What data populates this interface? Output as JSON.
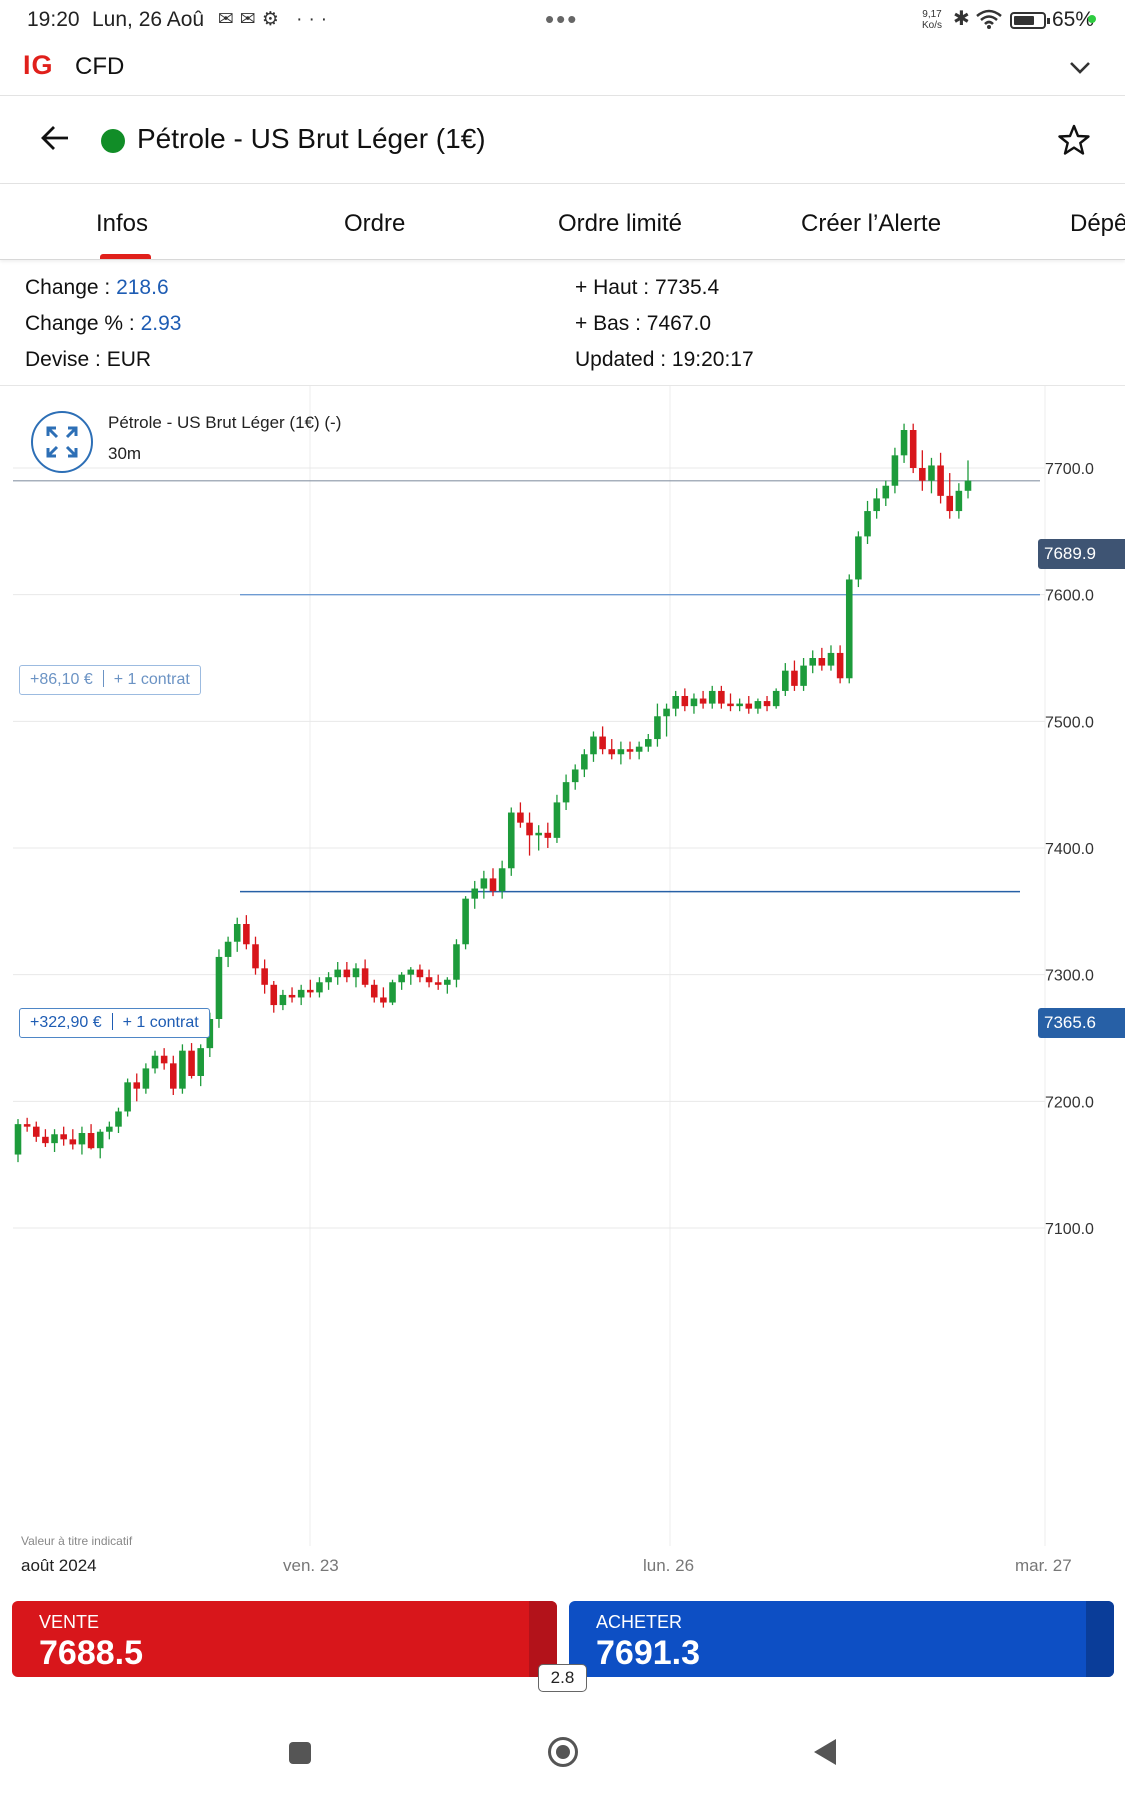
{
  "status_bar": {
    "time": "19:20",
    "date": "Lun, 26 Aoû",
    "notif_icons": "✉✉⚙ ···",
    "center_dots": "•••",
    "net_speed_value": "9,17",
    "net_speed_unit": "Ko/s",
    "battery": "65%"
  },
  "app_bar": {
    "logo": "IG",
    "account_type": "CFD"
  },
  "header": {
    "title": "Pétrole - US Brut Léger (1€)",
    "market_status_color": "#118d27"
  },
  "tabs": [
    "Infos",
    "Ordre",
    "Ordre limité",
    "Créer l’Alerte",
    "Dépê"
  ],
  "info": {
    "change_label": "Change : ",
    "change_value": "218.6",
    "change_pct_label": "Change % : ",
    "change_pct_value": "2.93",
    "currency_label": "Devise : ",
    "currency_value": "EUR",
    "high_label": "+ Haut : ",
    "high_value": "7735.4",
    "low_label": "+ Bas : ",
    "low_value": "7467.0",
    "updated_label": "Updated : ",
    "updated_value": "19:20:17"
  },
  "chart": {
    "title": "Pétrole - US Brut Léger (1€) (-)",
    "interval": "30m",
    "disclaimer": "Valeur à titre indicatif",
    "date_labels": [
      "août 2024",
      "ven. 23",
      "lun. 26",
      "mar. 27"
    ],
    "positions": [
      {
        "pnl": "+86,10 €",
        "qty": "+ 1 contrat",
        "level": 7600.0
      },
      {
        "pnl": "+322,90 €",
        "qty": "+ 1 contrat",
        "level": 7365.6
      }
    ],
    "current_price_tag": "7689.9",
    "position_price_tag": "7365.6"
  },
  "chart_data": {
    "type": "candlestick",
    "title": "Pétrole - US Brut Léger (1€) (-)",
    "interval": "30m",
    "y_ticks": [
      7100.0,
      7200.0,
      7300.0,
      7400.0,
      7500.0,
      7600.0,
      7700.0
    ],
    "y_tick_labels": [
      "7100.0",
      "7200.0",
      "7300.0",
      "7400.0",
      "7500.0",
      "7600.0",
      "7700.0"
    ],
    "ylim": [
      7000,
      7800
    ],
    "x_labels": [
      "août 2024",
      "ven. 23",
      "lun. 26",
      "mar. 27"
    ],
    "grid": true,
    "colors": {
      "up": "#1d9b3b",
      "down": "#d8161b"
    },
    "horizontal_lines": [
      {
        "label": "current",
        "value": 7689.9
      },
      {
        "label": "position",
        "value": 7600.0
      },
      {
        "label": "position",
        "value": 7365.6
      }
    ],
    "candles": [
      [
        7158,
        7186,
        7152,
        7182
      ],
      [
        7182,
        7187,
        7176,
        7180
      ],
      [
        7180,
        7184,
        7168,
        7172
      ],
      [
        7172,
        7178,
        7164,
        7167
      ],
      [
        7167,
        7178,
        7160,
        7174
      ],
      [
        7174,
        7180,
        7165,
        7170
      ],
      [
        7170,
        7178,
        7162,
        7166
      ],
      [
        7166,
        7180,
        7158,
        7175
      ],
      [
        7175,
        7182,
        7162,
        7163
      ],
      [
        7163,
        7178,
        7155,
        7176
      ],
      [
        7176,
        7184,
        7170,
        7180
      ],
      [
        7180,
        7195,
        7175,
        7192
      ],
      [
        7192,
        7218,
        7188,
        7215
      ],
      [
        7215,
        7222,
        7200,
        7210
      ],
      [
        7210,
        7230,
        7206,
        7226
      ],
      [
        7226,
        7240,
        7222,
        7236
      ],
      [
        7236,
        7242,
        7225,
        7230
      ],
      [
        7230,
        7236,
        7205,
        7210
      ],
      [
        7210,
        7245,
        7206,
        7240
      ],
      [
        7240,
        7246,
        7218,
        7220
      ],
      [
        7220,
        7245,
        7212,
        7242
      ],
      [
        7242,
        7270,
        7235,
        7265
      ],
      [
        7265,
        7320,
        7258,
        7314
      ],
      [
        7314,
        7330,
        7306,
        7326
      ],
      [
        7326,
        7345,
        7318,
        7340
      ],
      [
        7340,
        7347,
        7320,
        7324
      ],
      [
        7324,
        7330,
        7300,
        7305
      ],
      [
        7305,
        7312,
        7285,
        7292
      ],
      [
        7292,
        7295,
        7270,
        7276
      ],
      [
        7276,
        7288,
        7272,
        7284
      ],
      [
        7284,
        7290,
        7278,
        7282
      ],
      [
        7282,
        7292,
        7276,
        7288
      ],
      [
        7288,
        7296,
        7282,
        7286
      ],
      [
        7286,
        7298,
        7282,
        7294
      ],
      [
        7294,
        7302,
        7288,
        7298
      ],
      [
        7298,
        7310,
        7292,
        7304
      ],
      [
        7304,
        7310,
        7294,
        7298
      ],
      [
        7298,
        7309,
        7290,
        7305
      ],
      [
        7305,
        7312,
        7290,
        7292
      ],
      [
        7292,
        7296,
        7278,
        7282
      ],
      [
        7282,
        7290,
        7274,
        7278
      ],
      [
        7278,
        7296,
        7276,
        7294
      ],
      [
        7294,
        7302,
        7288,
        7300
      ],
      [
        7300,
        7306,
        7292,
        7304
      ],
      [
        7304,
        7308,
        7294,
        7298
      ],
      [
        7298,
        7304,
        7290,
        7294
      ],
      [
        7294,
        7300,
        7288,
        7292
      ],
      [
        7292,
        7298,
        7285,
        7296
      ],
      [
        7296,
        7328,
        7290,
        7324
      ],
      [
        7324,
        7362,
        7320,
        7360
      ],
      [
        7360,
        7374,
        7352,
        7368
      ],
      [
        7368,
        7382,
        7360,
        7376
      ],
      [
        7376,
        7384,
        7362,
        7366
      ],
      [
        7366,
        7390,
        7360,
        7384
      ],
      [
        7384,
        7432,
        7378,
        7428
      ],
      [
        7428,
        7436,
        7416,
        7420
      ],
      [
        7420,
        7428,
        7394,
        7410
      ],
      [
        7410,
        7418,
        7398,
        7412
      ],
      [
        7412,
        7420,
        7400,
        7408
      ],
      [
        7408,
        7442,
        7404,
        7436
      ],
      [
        7436,
        7458,
        7430,
        7452
      ],
      [
        7452,
        7466,
        7446,
        7462
      ],
      [
        7462,
        7478,
        7456,
        7474
      ],
      [
        7474,
        7492,
        7468,
        7488
      ],
      [
        7488,
        7496,
        7474,
        7478
      ],
      [
        7478,
        7486,
        7470,
        7474
      ],
      [
        7474,
        7484,
        7466,
        7478
      ],
      [
        7478,
        7484,
        7470,
        7476
      ],
      [
        7476,
        7484,
        7470,
        7480
      ],
      [
        7480,
        7490,
        7476,
        7486
      ],
      [
        7486,
        7514,
        7480,
        7504
      ],
      [
        7504,
        7514,
        7488,
        7510
      ],
      [
        7510,
        7524,
        7504,
        7520
      ],
      [
        7520,
        7526,
        7508,
        7512
      ],
      [
        7512,
        7522,
        7506,
        7518
      ],
      [
        7518,
        7524,
        7510,
        7514
      ],
      [
        7514,
        7528,
        7510,
        7524
      ],
      [
        7524,
        7528,
        7510,
        7514
      ],
      [
        7514,
        7522,
        7508,
        7512
      ],
      [
        7512,
        7518,
        7508,
        7514
      ],
      [
        7514,
        7520,
        7506,
        7510
      ],
      [
        7510,
        7518,
        7506,
        7516
      ],
      [
        7516,
        7520,
        7508,
        7512
      ],
      [
        7512,
        7526,
        7510,
        7524
      ],
      [
        7524,
        7546,
        7520,
        7540
      ],
      [
        7540,
        7548,
        7524,
        7528
      ],
      [
        7528,
        7550,
        7524,
        7544
      ],
      [
        7544,
        7556,
        7538,
        7550
      ],
      [
        7550,
        7558,
        7540,
        7544
      ],
      [
        7544,
        7560,
        7540,
        7554
      ],
      [
        7554,
        7560,
        7530,
        7534
      ],
      [
        7534,
        7616,
        7530,
        7612
      ],
      [
        7612,
        7650,
        7606,
        7646
      ],
      [
        7646,
        7674,
        7640,
        7666
      ],
      [
        7666,
        7684,
        7660,
        7676
      ],
      [
        7676,
        7690,
        7670,
        7686
      ],
      [
        7686,
        7716,
        7680,
        7710
      ],
      [
        7710,
        7735,
        7704,
        7730
      ],
      [
        7730,
        7735,
        7696,
        7700
      ],
      [
        7700,
        7714,
        7682,
        7690
      ],
      [
        7690,
        7708,
        7680,
        7702
      ],
      [
        7702,
        7712,
        7672,
        7678
      ],
      [
        7678,
        7696,
        7660,
        7666
      ],
      [
        7666,
        7688,
        7660,
        7682
      ],
      [
        7682,
        7706,
        7676,
        7690
      ]
    ]
  },
  "trade": {
    "sell_label": "VENTE",
    "sell_price": "7688.5",
    "buy_label": "ACHETER",
    "buy_price": "7691.3",
    "spread": "2.8",
    "sell_color": "#d8161b",
    "buy_color": "#0d4fc4"
  }
}
